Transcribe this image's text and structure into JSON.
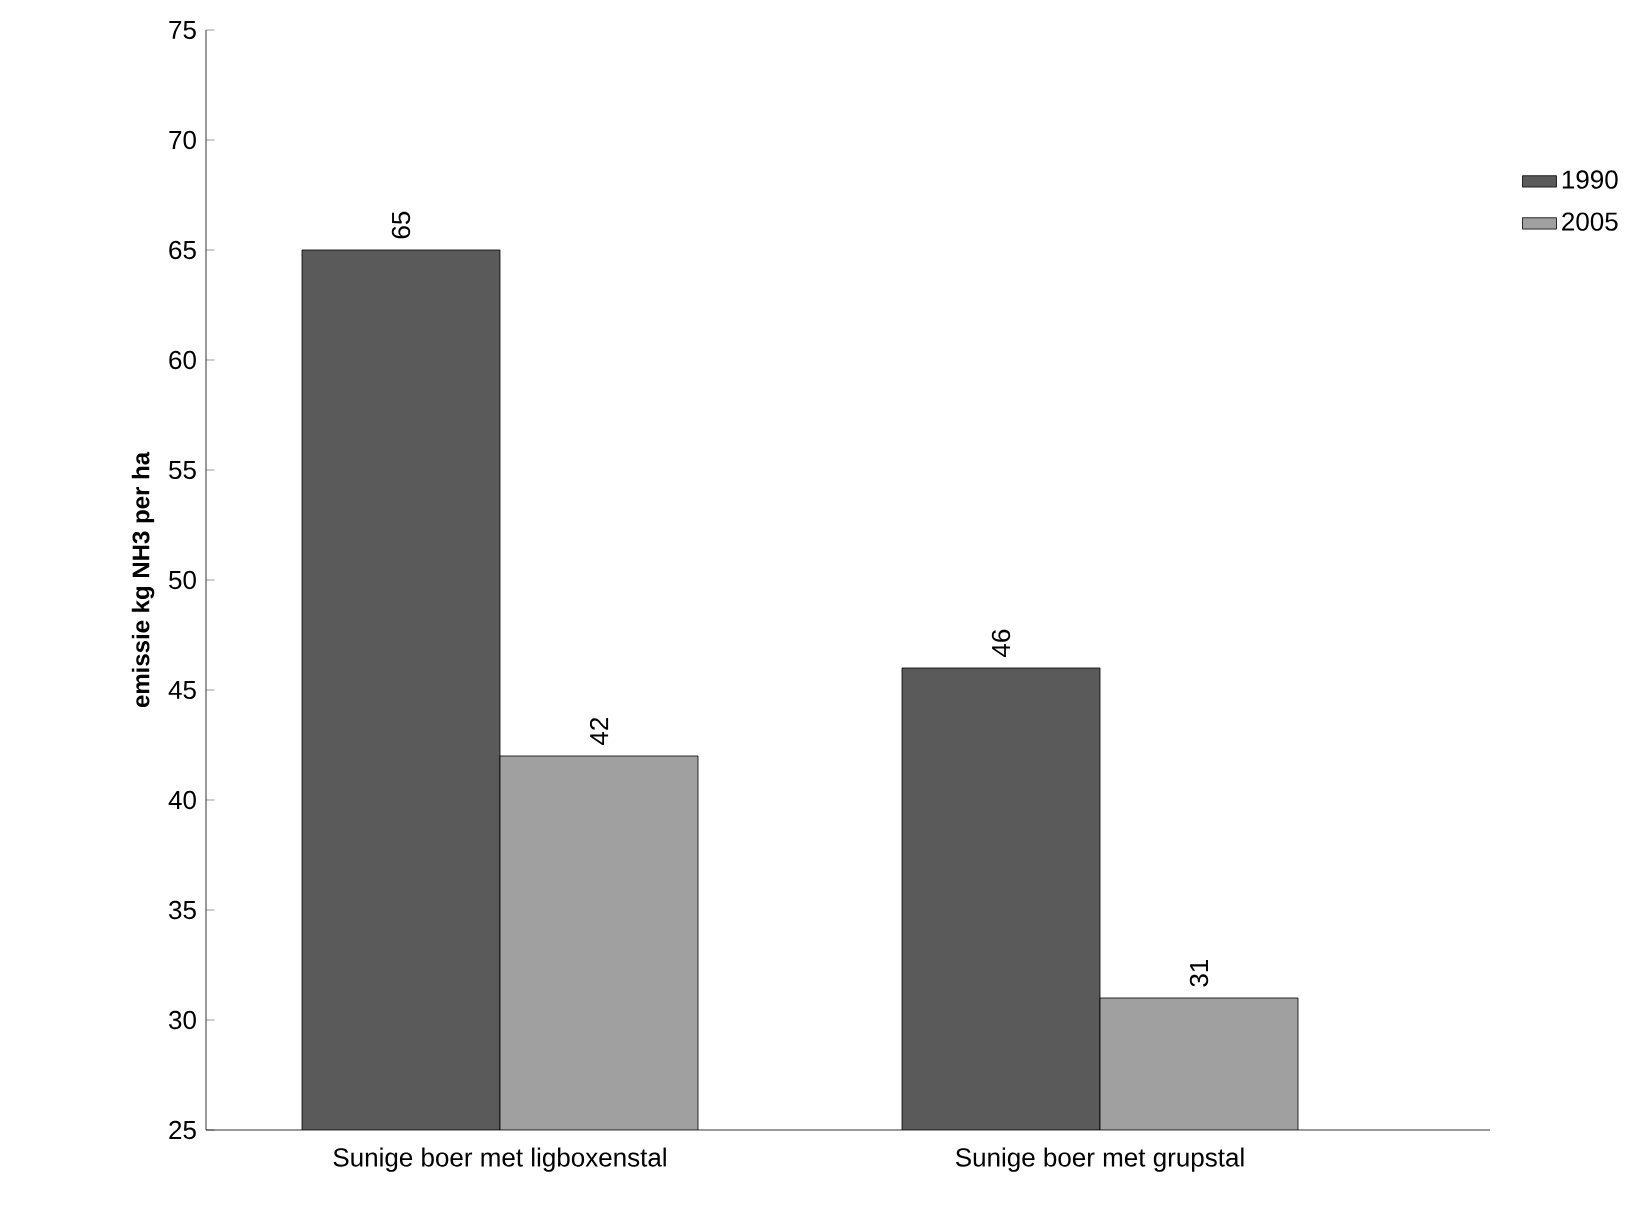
{
  "chart_data": {
    "type": "bar",
    "ylabel": "emissie kg NH3 per ha",
    "categories": [
      "Sunige boer met ligboxenstal",
      "Sunige boer met grupstal"
    ],
    "series": [
      {
        "name": "1990",
        "color": "#5a5a5a",
        "values": [
          65,
          46
        ]
      },
      {
        "name": "2005",
        "color": "#a0a0a0",
        "values": [
          42,
          31
        ]
      }
    ],
    "ylim": [
      25,
      75
    ],
    "yticks": [
      25,
      30,
      35,
      40,
      45,
      50,
      55,
      60,
      65,
      70,
      75
    ],
    "data_labels": true,
    "legend": "right"
  }
}
